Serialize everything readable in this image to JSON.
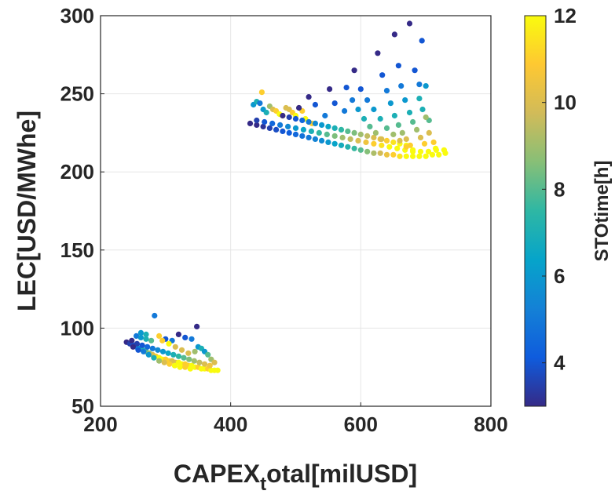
{
  "chart_data": {
    "type": "scatter",
    "xlabel_main": "CAPEX",
    "xlabel_sub": "t",
    "xlabel_rest": "otal[milUSD]",
    "ylabel": "LEC[USD/MWhe]",
    "xlim": [
      200,
      800
    ],
    "ylim": [
      50,
      300
    ],
    "xticks": [
      "200",
      "400",
      "600",
      "800"
    ],
    "yticks": [
      "50",
      "100",
      "150",
      "200",
      "250",
      "300"
    ],
    "grid": true,
    "colorbar": {
      "label": "STOtime[h]",
      "range": [
        3,
        12
      ],
      "ticks": [
        "4",
        "6",
        "8",
        "10",
        "12"
      ],
      "colormap": "parula",
      "colors": [
        "#352a87",
        "#0f5cdd",
        "#1481d6",
        "#06a4ca",
        "#2eb7a4",
        "#87bf77",
        "#d1bb59",
        "#fec832",
        "#f9fb0e"
      ]
    },
    "points": [
      [
        240,
        91,
        3
      ],
      [
        245,
        90,
        3.5
      ],
      [
        250,
        89,
        4
      ],
      [
        255,
        88,
        5
      ],
      [
        260,
        87,
        6
      ],
      [
        265,
        86,
        7
      ],
      [
        270,
        85,
        8
      ],
      [
        275,
        84,
        9
      ],
      [
        280,
        83,
        10
      ],
      [
        285,
        82,
        11
      ],
      [
        290,
        81,
        12
      ],
      [
        295,
        80,
        12
      ],
      [
        300,
        80,
        11
      ],
      [
        305,
        79,
        11
      ],
      [
        310,
        79,
        10
      ],
      [
        315,
        78,
        10
      ],
      [
        320,
        78,
        12
      ],
      [
        325,
        77,
        12
      ],
      [
        330,
        77,
        11
      ],
      [
        335,
        76,
        11
      ],
      [
        340,
        76,
        12
      ],
      [
        345,
        75,
        12
      ],
      [
        350,
        75,
        11
      ],
      [
        355,
        74,
        12
      ],
      [
        360,
        74,
        12
      ],
      [
        365,
        74,
        11
      ],
      [
        370,
        73,
        12
      ],
      [
        375,
        73,
        12
      ],
      [
        380,
        73,
        12
      ],
      [
        248,
        92,
        3
      ],
      [
        256,
        90,
        3.5
      ],
      [
        264,
        89,
        4
      ],
      [
        272,
        88,
        4.5
      ],
      [
        280,
        87,
        5
      ],
      [
        288,
        86,
        5.5
      ],
      [
        296,
        85,
        6
      ],
      [
        304,
        84,
        6.5
      ],
      [
        312,
        83,
        7
      ],
      [
        320,
        82,
        7.5
      ],
      [
        328,
        81,
        8
      ],
      [
        336,
        80,
        8.5
      ],
      [
        344,
        79,
        9
      ],
      [
        352,
        78,
        9.5
      ],
      [
        360,
        77,
        10
      ],
      [
        368,
        76,
        10.5
      ],
      [
        255,
        95,
        5
      ],
      [
        262,
        94,
        6
      ],
      [
        270,
        93,
        7
      ],
      [
        278,
        92,
        8
      ],
      [
        262,
        97,
        6
      ],
      [
        270,
        96,
        7
      ],
      [
        283,
        108,
        5
      ],
      [
        290,
        95,
        11
      ],
      [
        300,
        93,
        4
      ],
      [
        310,
        92,
        5
      ],
      [
        320,
        96,
        3
      ],
      [
        330,
        94,
        4
      ],
      [
        340,
        93,
        5
      ],
      [
        348,
        101,
        3
      ],
      [
        350,
        88,
        6
      ],
      [
        355,
        87,
        7
      ],
      [
        345,
        85,
        9
      ],
      [
        335,
        84,
        10
      ],
      [
        325,
        86,
        10
      ],
      [
        315,
        88,
        10
      ],
      [
        305,
        90,
        12
      ],
      [
        295,
        92,
        11
      ],
      [
        360,
        85,
        6
      ],
      [
        365,
        83,
        8
      ],
      [
        370,
        80,
        9
      ],
      [
        375,
        78,
        10
      ],
      [
        250,
        88,
        3
      ],
      [
        258,
        86,
        4
      ],
      [
        266,
        85,
        5
      ],
      [
        274,
        83,
        6
      ],
      [
        282,
        81,
        7
      ],
      [
        290,
        79,
        9
      ],
      [
        298,
        78,
        10
      ],
      [
        306,
        77,
        11
      ],
      [
        314,
        76,
        12
      ],
      [
        322,
        75,
        12
      ],
      [
        330,
        75,
        11
      ],
      [
        338,
        74,
        12
      ],
      [
        430,
        231,
        3
      ],
      [
        440,
        230,
        3
      ],
      [
        450,
        229,
        3.2
      ],
      [
        460,
        228,
        3.5
      ],
      [
        470,
        227,
        3.8
      ],
      [
        480,
        226,
        4
      ],
      [
        490,
        225,
        4.2
      ],
      [
        500,
        224,
        4.5
      ],
      [
        510,
        223,
        4.8
      ],
      [
        520,
        222,
        5
      ],
      [
        530,
        221,
        5.3
      ],
      [
        540,
        220,
        5.6
      ],
      [
        550,
        219,
        6
      ],
      [
        560,
        218,
        6.4
      ],
      [
        570,
        217,
        6.8
      ],
      [
        580,
        216,
        7.2
      ],
      [
        590,
        215,
        7.6
      ],
      [
        600,
        214,
        8
      ],
      [
        610,
        213,
        8.6
      ],
      [
        620,
        212,
        9.2
      ],
      [
        630,
        212,
        9.8
      ],
      [
        640,
        211,
        10.4
      ],
      [
        650,
        211,
        11
      ],
      [
        660,
        210,
        11.5
      ],
      [
        670,
        210,
        12
      ],
      [
        680,
        210,
        12
      ],
      [
        690,
        210,
        12
      ],
      [
        700,
        210,
        12
      ],
      [
        710,
        211,
        12
      ],
      [
        720,
        211,
        12
      ],
      [
        730,
        212,
        12
      ],
      [
        440,
        233,
        3.5
      ],
      [
        452,
        232,
        4
      ],
      [
        464,
        231,
        4.5
      ],
      [
        476,
        230,
        5
      ],
      [
        488,
        229,
        5.5
      ],
      [
        500,
        228,
        6
      ],
      [
        512,
        227,
        6.5
      ],
      [
        524,
        226,
        7
      ],
      [
        536,
        225,
        7.5
      ],
      [
        548,
        224,
        8
      ],
      [
        560,
        223,
        8.5
      ],
      [
        572,
        222,
        9
      ],
      [
        584,
        221,
        9.5
      ],
      [
        596,
        220,
        10
      ],
      [
        608,
        219,
        10.5
      ],
      [
        620,
        218,
        11
      ],
      [
        632,
        217,
        11.5
      ],
      [
        644,
        216,
        12
      ],
      [
        656,
        215,
        12
      ],
      [
        668,
        214,
        12
      ],
      [
        680,
        214,
        12
      ],
      [
        692,
        213,
        12
      ],
      [
        704,
        213,
        12
      ],
      [
        716,
        214,
        12
      ],
      [
        728,
        214,
        12
      ],
      [
        435,
        243,
        6
      ],
      [
        440,
        245,
        7
      ],
      [
        445,
        244,
        5
      ],
      [
        448,
        251,
        11
      ],
      [
        450,
        240,
        6
      ],
      [
        455,
        238,
        7
      ],
      [
        460,
        242,
        9
      ],
      [
        465,
        240,
        10
      ],
      [
        470,
        239,
        11
      ],
      [
        475,
        237,
        12
      ],
      [
        480,
        236,
        12
      ],
      [
        485,
        241,
        10
      ],
      [
        490,
        240,
        10
      ],
      [
        495,
        238,
        11
      ],
      [
        500,
        236,
        12
      ],
      [
        505,
        241,
        10
      ],
      [
        510,
        239,
        11
      ],
      [
        515,
        234,
        12
      ],
      [
        520,
        232,
        12
      ],
      [
        525,
        231,
        11
      ],
      [
        480,
        236,
        3
      ],
      [
        490,
        235,
        3.5
      ],
      [
        500,
        234,
        4
      ],
      [
        510,
        233,
        4.5
      ],
      [
        520,
        232,
        5
      ],
      [
        530,
        231,
        5.5
      ],
      [
        540,
        230,
        6
      ],
      [
        550,
        229,
        6.5
      ],
      [
        560,
        228,
        7
      ],
      [
        570,
        227,
        7.5
      ],
      [
        580,
        226,
        8
      ],
      [
        590,
        225,
        8.5
      ],
      [
        600,
        224,
        9
      ],
      [
        610,
        223,
        9.5
      ],
      [
        620,
        222,
        10
      ],
      [
        630,
        221,
        10.5
      ],
      [
        640,
        220,
        11
      ],
      [
        650,
        219,
        11.5
      ],
      [
        660,
        218,
        12
      ],
      [
        670,
        217,
        12
      ],
      [
        505,
        241,
        3
      ],
      [
        520,
        248,
        3
      ],
      [
        530,
        243,
        4
      ],
      [
        545,
        236,
        5
      ],
      [
        552,
        253,
        3
      ],
      [
        560,
        244,
        4
      ],
      [
        575,
        239,
        5
      ],
      [
        590,
        265,
        3
      ],
      [
        600,
        253,
        4
      ],
      [
        610,
        246,
        5
      ],
      [
        620,
        240,
        6
      ],
      [
        630,
        234,
        7
      ],
      [
        640,
        228,
        8
      ],
      [
        650,
        224,
        9
      ],
      [
        660,
        220,
        10
      ],
      [
        670,
        216,
        11
      ],
      [
        680,
        213,
        12
      ],
      [
        578,
        254,
        4
      ],
      [
        587,
        246,
        5
      ],
      [
        596,
        240,
        6
      ],
      [
        605,
        234,
        7
      ],
      [
        614,
        229,
        8
      ],
      [
        623,
        225,
        9
      ],
      [
        632,
        221,
        10
      ],
      [
        626,
        276,
        3
      ],
      [
        633,
        262,
        4
      ],
      [
        640,
        252,
        5
      ],
      [
        646,
        244,
        6
      ],
      [
        652,
        236,
        7
      ],
      [
        658,
        230,
        8
      ],
      [
        664,
        225,
        9
      ],
      [
        670,
        221,
        10
      ],
      [
        676,
        217,
        11
      ],
      [
        652,
        288,
        3
      ],
      [
        658,
        268,
        4
      ],
      [
        662,
        255,
        5
      ],
      [
        668,
        246,
        6
      ],
      [
        675,
        238,
        7
      ],
      [
        680,
        232,
        8
      ],
      [
        686,
        227,
        9
      ],
      [
        692,
        222,
        10
      ],
      [
        698,
        218,
        11
      ],
      [
        712,
        219,
        11
      ],
      [
        715,
        215,
        12
      ],
      [
        675,
        295,
        3
      ],
      [
        683,
        265,
        4
      ],
      [
        690,
        256,
        5
      ],
      [
        694,
        284,
        4
      ],
      [
        700,
        255,
        6
      ],
      [
        705,
        233,
        8
      ],
      [
        690,
        247,
        7
      ],
      [
        695,
        240,
        7
      ],
      [
        700,
        235,
        9
      ],
      [
        705,
        225,
        10
      ]
    ]
  }
}
